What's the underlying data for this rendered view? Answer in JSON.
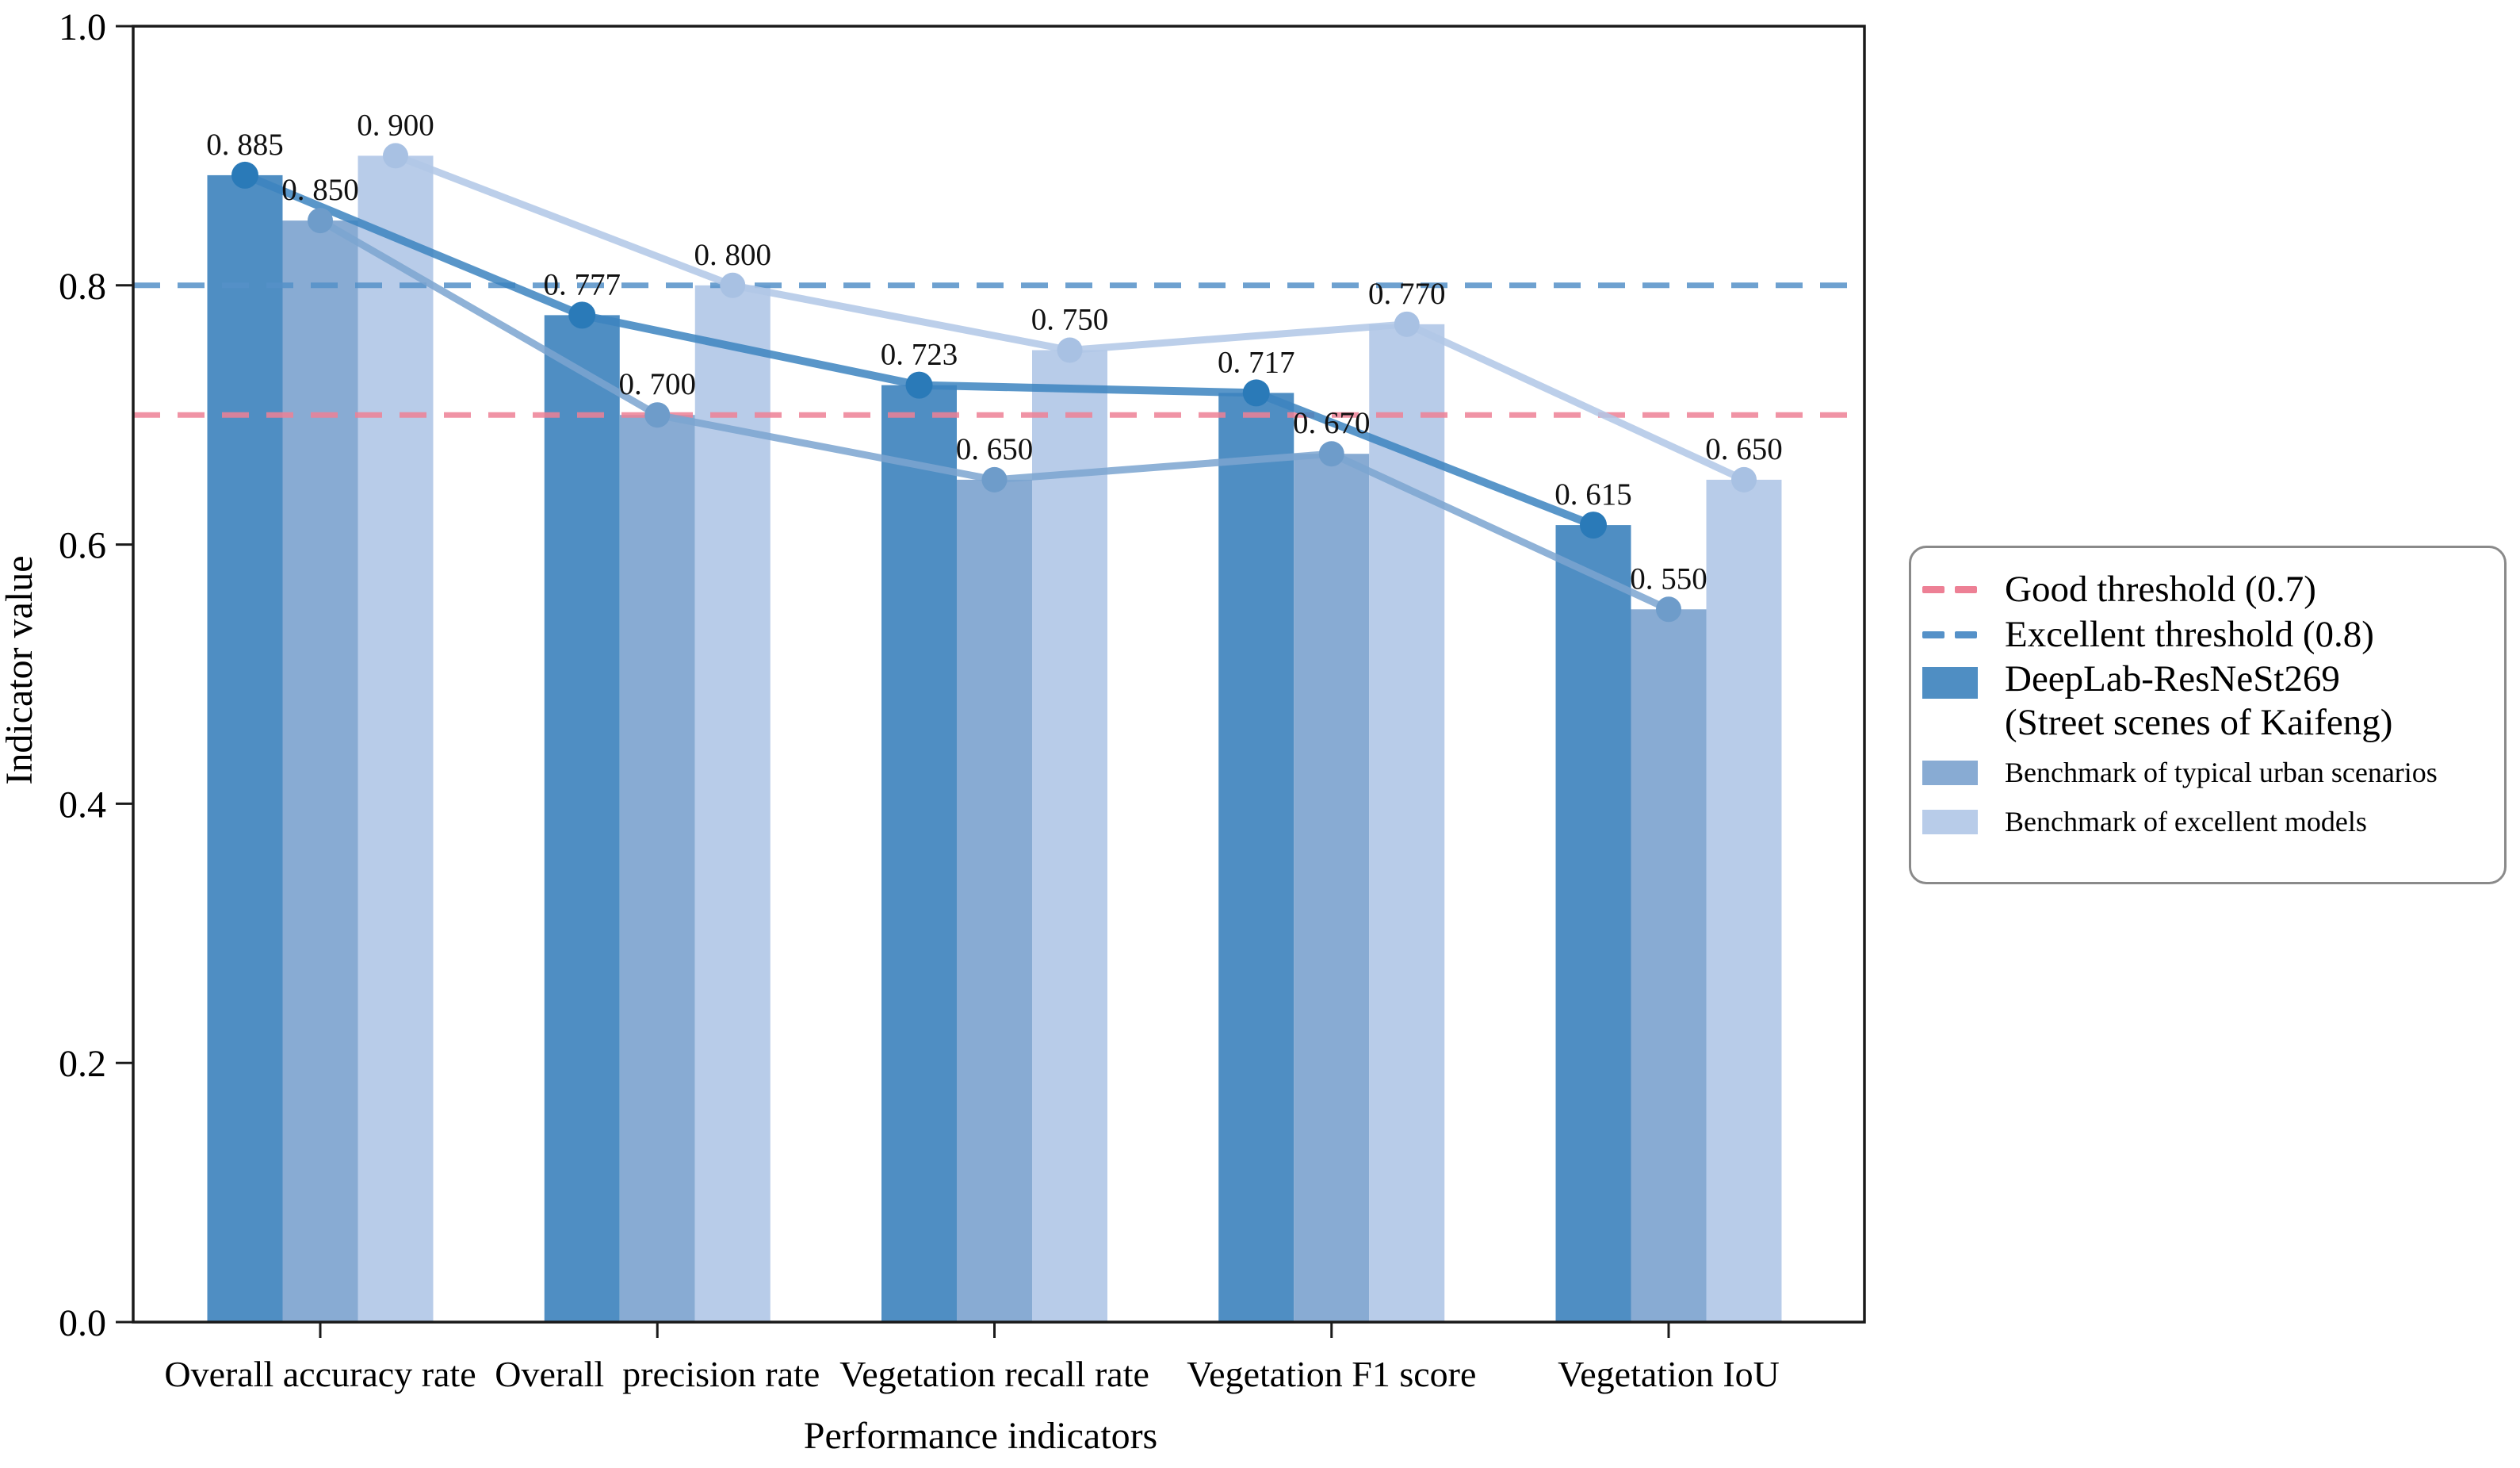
{
  "figure": {
    "background": "#ffffff",
    "frame_color": "#1a1a1a",
    "text_color": "#000000"
  },
  "axes": {
    "x_title": "Performance indicators",
    "y_title": "Indicator value",
    "y_ticks": [
      {
        "value": 0.0,
        "label": "0.0"
      },
      {
        "value": 0.2,
        "label": "0.2"
      },
      {
        "value": 0.4,
        "label": "0.4"
      },
      {
        "value": 0.6,
        "label": "0.6"
      },
      {
        "value": 0.8,
        "label": "0.8"
      },
      {
        "value": 1.0,
        "label": "1.0"
      }
    ]
  },
  "chart_data": {
    "type": "bar",
    "title": "",
    "xlabel": "Performance indicators",
    "ylabel": "Indicator value",
    "ylim": [
      0.0,
      1.0
    ],
    "grid": false,
    "legend_position": "right",
    "categories": [
      "Overall accuracy rate",
      "Overall  precision rate",
      "Vegetation recall rate",
      "Vegetation F1 score",
      "Vegetation IoU"
    ],
    "series": [
      {
        "name": "DeepLab-ResNeSt269 (Street scenes of Kaifeng)",
        "values": [
          0.885,
          0.777,
          0.723,
          0.717,
          0.615
        ],
        "value_labels": [
          "0. 885",
          "0. 777",
          "0. 723",
          "0. 717",
          "0. 615"
        ],
        "bar_color": "#4f8ec3",
        "line_color": "#3c84c0",
        "marker_color": "#2a7ab8"
      },
      {
        "name": "Benchmark of typical urban scenarios",
        "values": [
          0.85,
          0.7,
          0.65,
          0.67,
          0.55
        ],
        "value_labels": [
          "0. 850",
          "0. 700",
          "0. 650",
          "0. 670",
          "0. 550"
        ],
        "bar_color": "#88abd3",
        "line_color": "#7ba4d0",
        "marker_color": "#6e9cca"
      },
      {
        "name": "Benchmark of excellent models",
        "values": [
          0.9,
          0.8,
          0.75,
          0.77,
          0.65
        ],
        "value_labels": [
          "0. 900",
          "0. 800",
          "0. 750",
          "0. 770",
          "0. 650"
        ],
        "bar_color": "#b8cce9",
        "line_color": "#b0c7e6",
        "marker_color": "#a8c1e3"
      }
    ],
    "thresholds": [
      {
        "name": "Good threshold (0.7)",
        "value": 0.7,
        "color": "#ed8095",
        "style": "dashed"
      },
      {
        "name": "Excellent threshold (0.8)",
        "value": 0.8,
        "color": "#5591c8",
        "style": "dashed"
      }
    ]
  },
  "legend": {
    "items": [
      {
        "kind": "dash",
        "size": "large",
        "color": "#ed8095",
        "lines": [
          "Good threshold (0.7)"
        ]
      },
      {
        "kind": "dash",
        "size": "large",
        "color": "#5591c8",
        "lines": [
          "Excellent threshold (0.8)"
        ]
      },
      {
        "kind": "rect",
        "size": "large",
        "color": "#4f8ec3",
        "lines": [
          "DeepLab-ResNeSt269",
          "(Street scenes of Kaifeng)"
        ]
      },
      {
        "kind": "rect",
        "size": "small",
        "color": "#88abd3",
        "lines": [
          "Benchmark of typical urban scenarios"
        ]
      },
      {
        "kind": "rect",
        "size": "small",
        "color": "#b8cce9",
        "lines": [
          "Benchmark of excellent models"
        ]
      }
    ]
  }
}
